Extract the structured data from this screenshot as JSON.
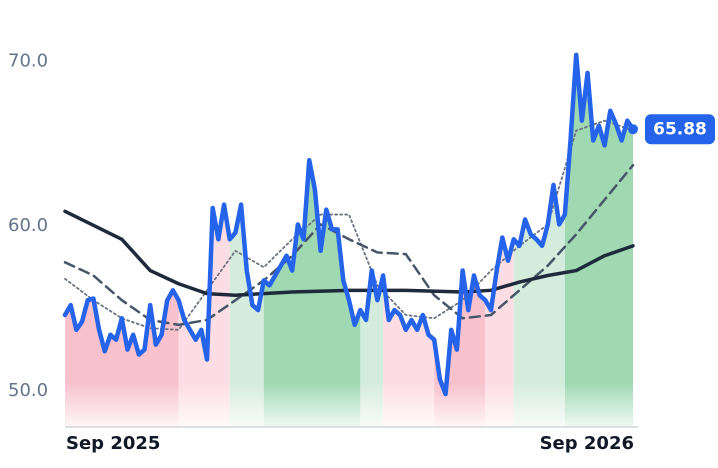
{
  "chart_data": {
    "type": "line",
    "ylim": [
      47.8,
      71.3
    ],
    "yticks": [
      {
        "value": 50,
        "label": "50.0"
      },
      {
        "value": 60,
        "label": "60.0"
      },
      {
        "value": 70,
        "label": "70.0"
      }
    ],
    "xlim": [
      0,
      100
    ],
    "xticks": [
      {
        "value": 0,
        "label": "Sep 2025"
      },
      {
        "value": 100,
        "label": "Sep 2026"
      }
    ],
    "bands": [
      {
        "start": 0,
        "end": 20,
        "color": "#f8c1cc"
      },
      {
        "start": 20,
        "end": 29,
        "color": "#fcdde3"
      },
      {
        "start": 29,
        "end": 35,
        "color": "#d4ecdc"
      },
      {
        "start": 35,
        "end": 52,
        "color": "#9fd8b1"
      },
      {
        "start": 52,
        "end": 56,
        "color": "#d4ecdc"
      },
      {
        "start": 56,
        "end": 65,
        "color": "#fcdde3"
      },
      {
        "start": 65,
        "end": 74,
        "color": "#f8c1cc"
      },
      {
        "start": 74,
        "end": 79,
        "color": "#fcdde3"
      },
      {
        "start": 79,
        "end": 88,
        "color": "#d4ecdc"
      },
      {
        "start": 88,
        "end": 100,
        "color": "#9fd8b1"
      }
    ],
    "series": [
      {
        "color": "#2563eb",
        "style": "solid",
        "width": 4.5,
        "x": [
          0,
          1,
          2,
          3,
          4,
          5,
          6,
          7,
          8,
          9,
          10,
          11,
          12,
          13,
          14,
          15,
          16,
          17,
          18,
          19,
          20,
          21,
          22,
          23,
          24,
          25,
          26,
          27,
          28,
          29,
          30,
          31,
          32,
          33,
          34,
          35,
          36,
          37,
          38,
          39,
          40,
          41,
          42,
          43,
          44,
          45,
          46,
          47,
          48,
          49,
          50,
          51,
          52,
          53,
          54,
          55,
          56,
          57,
          58,
          59,
          60,
          61,
          62,
          63,
          64,
          65,
          66,
          67,
          68,
          69,
          70,
          71,
          72,
          73,
          74,
          75,
          76,
          77,
          78,
          79,
          80,
          81,
          82,
          83,
          84,
          85,
          86,
          87,
          88,
          89,
          90,
          91,
          92,
          93,
          94,
          95,
          96,
          97,
          98,
          99,
          100
        ],
        "values": [
          54.6,
          55.2,
          53.7,
          54.2,
          55.5,
          55.6,
          53.7,
          52.4,
          53.4,
          53.1,
          54.4,
          52.5,
          53.4,
          52.2,
          52.5,
          55.2,
          52.8,
          53.4,
          55.5,
          56.1,
          55.5,
          54.3,
          53.7,
          53.1,
          53.7,
          51.9,
          61.1,
          59.2,
          61.3,
          59.2,
          59.6,
          61.3,
          57.3,
          55.2,
          54.9,
          56.7,
          56.4,
          57.0,
          57.6,
          58.2,
          57.3,
          60.1,
          59.2,
          64.0,
          62.2,
          58.5,
          61.0,
          59.8,
          59.8,
          56.7,
          55.5,
          54.0,
          54.9,
          54.3,
          57.3,
          55.5,
          57.0,
          54.3,
          54.9,
          54.6,
          53.7,
          54.3,
          53.7,
          54.6,
          53.4,
          53.1,
          50.7,
          49.8,
          53.7,
          52.5,
          57.3,
          54.9,
          57.0,
          55.8,
          55.5,
          54.9,
          57.3,
          59.3,
          57.9,
          59.2,
          58.8,
          60.4,
          59.5,
          59.2,
          58.8,
          60.1,
          62.5,
          60.1,
          60.7,
          65.2,
          70.4,
          66.4,
          69.3,
          65.2,
          66.1,
          64.9,
          67.0,
          66.2,
          65.2,
          66.4,
          65.88
        ]
      },
      {
        "color": "#1e293b",
        "style": "solid",
        "width": 3.5,
        "x": [
          0,
          10,
          15,
          20,
          25,
          30,
          40,
          50,
          60,
          70,
          75,
          80,
          85,
          90,
          95,
          100
        ],
        "values": [
          60.9,
          59.2,
          57.3,
          56.5,
          55.9,
          55.8,
          56.0,
          56.1,
          56.1,
          56.0,
          56.1,
          56.6,
          57.0,
          57.3,
          58.2,
          58.8
        ]
      },
      {
        "color": "#475569",
        "style": "dashed",
        "width": 2.5,
        "x": [
          0,
          5,
          10,
          15,
          20,
          25,
          30,
          35,
          40,
          45,
          50,
          55,
          60,
          65,
          70,
          75,
          80,
          85,
          90,
          95,
          100
        ],
        "values": [
          57.8,
          57.0,
          55.5,
          54.3,
          54.0,
          54.3,
          55.5,
          56.7,
          58.2,
          60.1,
          59.2,
          58.4,
          58.3,
          55.8,
          54.4,
          54.6,
          56.1,
          57.6,
          59.5,
          61.6,
          63.7
        ]
      },
      {
        "color": "#6b7280",
        "style": "dotted",
        "width": 1.8,
        "x": [
          0,
          5,
          10,
          15,
          20,
          25,
          30,
          35,
          40,
          45,
          50,
          55,
          60,
          65,
          70,
          75,
          80,
          85,
          90,
          95,
          100
        ],
        "values": [
          56.8,
          55.5,
          54.4,
          53.8,
          53.7,
          56.1,
          58.5,
          57.5,
          59.2,
          60.7,
          60.7,
          56.4,
          54.6,
          54.4,
          55.5,
          57.3,
          58.8,
          60.1,
          65.8,
          66.4,
          65.8
        ]
      }
    ]
  }
}
